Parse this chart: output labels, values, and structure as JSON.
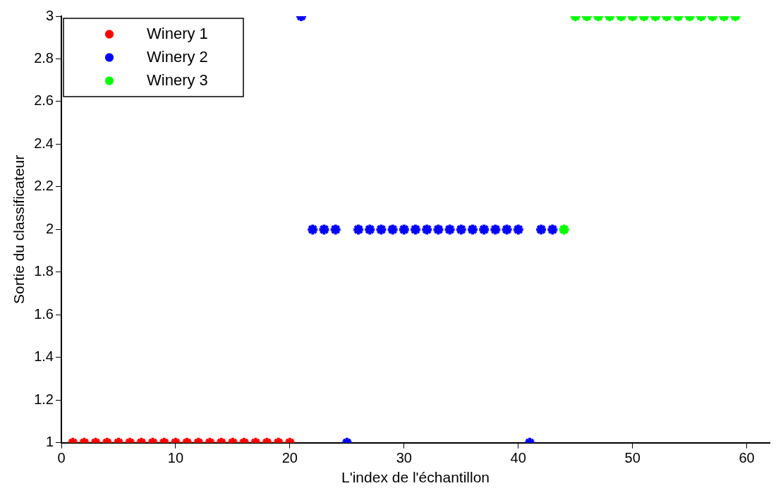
{
  "chart_data": {
    "type": "scatter",
    "xlabel": "L'index de l'échantillon",
    "ylabel": "Sortie du classificateur",
    "xlim": [
      0,
      62
    ],
    "xticks": [
      0,
      10,
      20,
      30,
      40,
      50,
      60
    ],
    "ylim": [
      1,
      3
    ],
    "yticks": [
      1,
      1.2,
      1.4,
      1.6,
      1.8,
      2,
      2.2,
      2.4,
      2.6,
      2.8,
      3
    ],
    "grid": false,
    "legend": "top left",
    "marker": "cross",
    "series": [
      {
        "name": "Winery 1",
        "color": "#ff0000",
        "x": [
          1,
          2,
          3,
          4,
          5,
          6,
          7,
          8,
          9,
          10,
          11,
          12,
          13,
          14,
          15,
          16,
          17,
          18,
          19,
          20
        ],
        "values": [
          1,
          1,
          1,
          1,
          1,
          1,
          1,
          1,
          1,
          1,
          1,
          1,
          1,
          1,
          1,
          1,
          1,
          1,
          1,
          1
        ]
      },
      {
        "name": "Winery 2",
        "color": "#0000ff",
        "x": [
          21,
          22,
          23,
          24,
          25,
          26,
          27,
          28,
          29,
          30,
          31,
          32,
          33,
          34,
          35,
          36,
          37,
          38,
          39,
          40,
          41,
          42,
          43
        ],
        "values": [
          3,
          2,
          2,
          2,
          1,
          2,
          2,
          2,
          2,
          2,
          2,
          2,
          2,
          2,
          2,
          2,
          2,
          2,
          2,
          2,
          1,
          2,
          2
        ]
      },
      {
        "name": "Winery 3",
        "color": "#00ff00",
        "x": [
          44,
          45,
          46,
          47,
          48,
          49,
          50,
          51,
          52,
          53,
          54,
          55,
          56,
          57,
          58,
          59
        ],
        "values": [
          2,
          3,
          3,
          3,
          3,
          3,
          3,
          3,
          3,
          3,
          3,
          3,
          3,
          3,
          3,
          3
        ]
      }
    ]
  }
}
